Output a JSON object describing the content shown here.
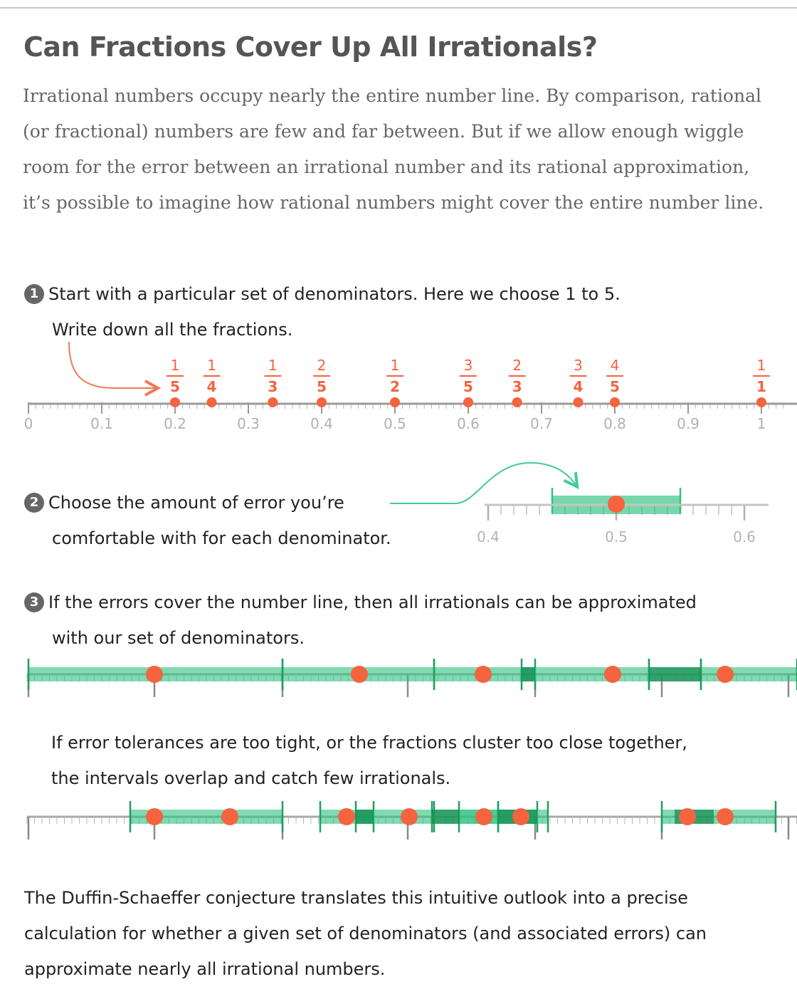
{
  "title": "Can Fractions Cover Up All Irrationals?",
  "intro": "Irrational numbers occupy nearly the entire number line. By comparison, rational (or fractional) numbers are few and far between. But if we allow enough wiggle room for the error between an irrational number and its rational approximation, it’s possible to imagine how rational numbers might cover the entire number line.",
  "steps": [
    {
      "number": "1",
      "line1": "Start with a particular set of denominators. Here we choose 1 to 5.",
      "line2": "Write down all the fractions."
    },
    {
      "number": "2",
      "line1": "Choose the amount of error you’re",
      "line2": "comfortable with for each denominator."
    },
    {
      "number": "3",
      "line1": "If the errors cover the number line, then all irrationals can be approximated",
      "line2": "with our set of denominators."
    }
  ],
  "overlap_note": {
    "line1": "If error tolerances are too tight, or the fractions cluster too close together,",
    "line2": "the intervals overlap and catch few irrationals."
  },
  "outro": "The Duffin-Schaeffer conjecture translates this intuitive outlook into a precise calculation for whether a given set of denominators (and associated errors) can approximate nearly all irrational numbers.",
  "colors": {
    "fraction": "#f5633f",
    "error": "#2ec27e",
    "axis": "#9a9a9a",
    "arrow_orange": "#f07a55",
    "arrow_green": "#3fcc9a"
  },
  "chart_data": [
    {
      "type": "scatter",
      "title": "",
      "xlim": [
        0,
        1
      ],
      "x_ticks": [
        "0",
        "0.1",
        "0.2",
        "0.3",
        "0.4",
        "0.5",
        "0.6",
        "0.7",
        "0.8",
        "0.9",
        "1"
      ],
      "fractions": [
        {
          "num": "1",
          "den": "5",
          "value": 0.2
        },
        {
          "num": "1",
          "den": "4",
          "value": 0.25
        },
        {
          "num": "1",
          "den": "3",
          "value": 0.3333
        },
        {
          "num": "2",
          "den": "5",
          "value": 0.4
        },
        {
          "num": "1",
          "den": "2",
          "value": 0.5
        },
        {
          "num": "3",
          "den": "5",
          "value": 0.6
        },
        {
          "num": "2",
          "den": "3",
          "value": 0.6667
        },
        {
          "num": "3",
          "den": "4",
          "value": 0.75
        },
        {
          "num": "4",
          "den": "5",
          "value": 0.8
        },
        {
          "num": "1",
          "den": "1",
          "value": 1.0
        }
      ]
    },
    {
      "type": "scatter",
      "xlim": [
        0.4,
        0.6
      ],
      "x_ticks": [
        "0.4",
        "0.5",
        "0.6"
      ],
      "point": 0.5,
      "error_interval": [
        0.45,
        0.55
      ]
    }
  ]
}
